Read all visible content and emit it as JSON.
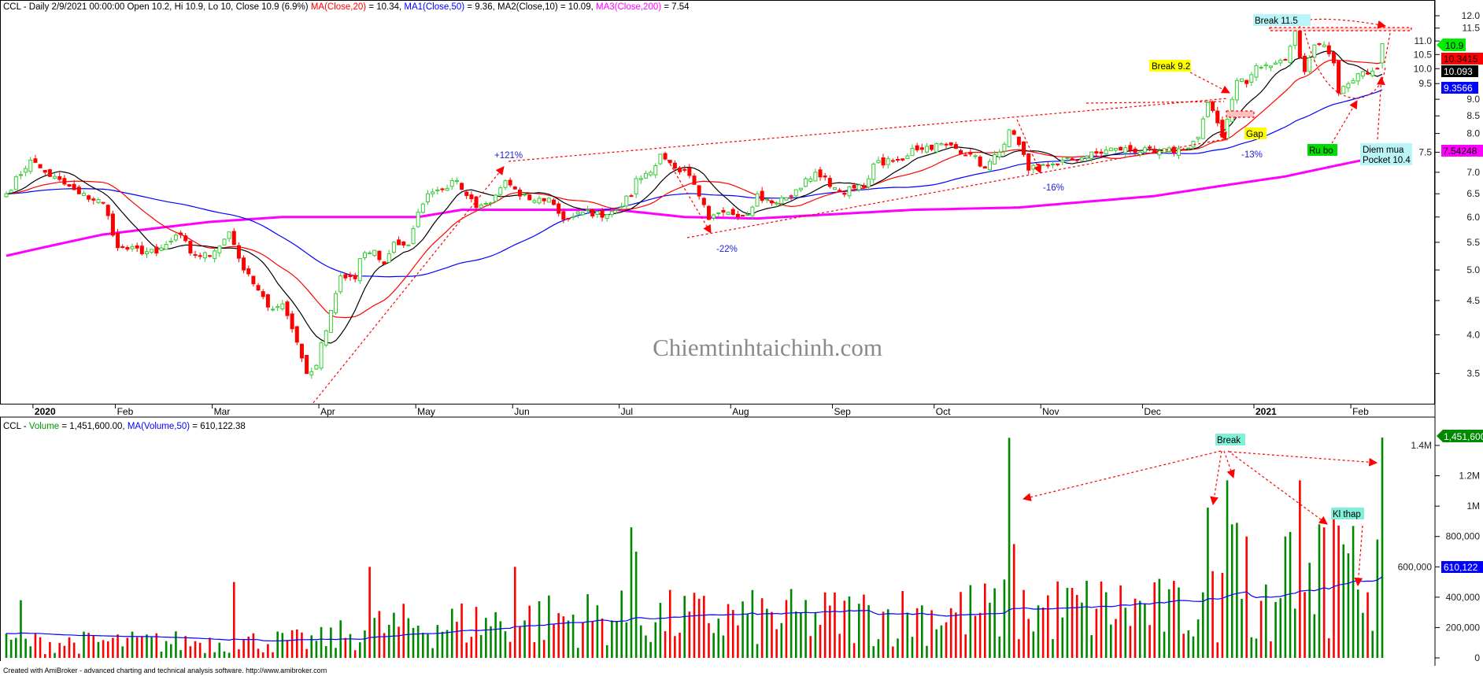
{
  "header": {
    "prefix": "CCL - Daily 2/9/2021 00:00:00 Open 10.2, Hi 10.9, Lo 10, Close 10.9 (6.9%) ",
    "ma20_name": "MA(Close,20)",
    "ma20_val": " = 10.34, ",
    "ma50_name": "MA1(Close,50)",
    "ma50_val": " = 9.36, ",
    "ma10_name": "MA2(Close,10)",
    "ma10_val": " = 10.09, ",
    "ma200_name": "MA3(Close,200)",
    "ma200_val": " = 7.54"
  },
  "volume_header": {
    "prefix": "CCL - ",
    "vol_name": "Volume",
    "vol_val": " = 1,451,600.00, ",
    "ma_name": "MA(Volume,50)",
    "ma_val": " = 610,122.38"
  },
  "watermark": "Chiemtinhtaichinh.com",
  "footer": "Created with AmiBroker - advanced charting and technical analysis software. http://www.amibroker.com",
  "colors": {
    "up": "#33cc33",
    "down": "#ff0000",
    "ma20": "#ff0000",
    "ma50": "#0000ff",
    "ma10": "#000000",
    "ma200": "#ff00ff",
    "vol_up": "#008800",
    "vol_down": "#ff0000",
    "label_cyan": "#b8f4f8",
    "label_yellow": "#ffff00",
    "label_green": "#00dd00",
    "label_aqua": "#80f0d8"
  },
  "annotations": {
    "p121": "+121%",
    "m22": "-22%",
    "m16": "-16%",
    "m13": "-13%",
    "break92": "Break 9.2",
    "gap": "Gap",
    "break115": "Break  11.5",
    "rubo": "Ru bo",
    "diem1": "Diem mua",
    "diem2": "Pocket 10.4",
    "vbreak": "Break",
    "klthap": "Kl thap"
  },
  "badges": {
    "close": "10.9",
    "ma20": "10.3415",
    "ma10": "10.093",
    "ma50": "9.3566",
    "ma200": "7.54248",
    "volume": "1,451,600",
    "vol_ma": "610,122"
  },
  "chart_data": [
    {
      "type": "candlestick",
      "symbol": "CCL",
      "scale": "log",
      "ylim": [
        3.2,
        12.6
      ],
      "yticks": [
        "12.0",
        "11.5",
        "11.0",
        "10.5",
        "10.0",
        "9.5",
        "9.0",
        "8.5",
        "8.0",
        "7.5",
        "7.0",
        "6.5",
        "6.0",
        "5.5",
        "5.0",
        "4.5",
        "4.0",
        "3.5"
      ],
      "xticks": [
        "2020",
        "Feb",
        "Mar",
        "Apr",
        "May",
        "Jun",
        "Jul",
        "Aug",
        "Sep",
        "Oct",
        "Nov",
        "Dec",
        "2021",
        "Feb"
      ],
      "last_bar": {
        "date": "2021-02-09",
        "open": 10.2,
        "high": 10.9,
        "low": 10,
        "close": 10.9,
        "change_pct": 6.9
      },
      "close_keypoints": [
        [
          "2019-12-24",
          6.5
        ],
        [
          "2019-12-31",
          7.3
        ],
        [
          "2020-01-06",
          7.0
        ],
        [
          "2020-01-15",
          6.5
        ],
        [
          "2020-01-22",
          6.3
        ],
        [
          "2020-02-03",
          5.4
        ],
        [
          "2020-02-13",
          5.3
        ],
        [
          "2020-02-20",
          5.65
        ],
        [
          "2020-02-24",
          5.3
        ],
        [
          "2020-02-28",
          5.25
        ],
        [
          "2020-03-05",
          5.7
        ],
        [
          "2020-03-10",
          5.0
        ],
        [
          "2020-03-17",
          4.4
        ],
        [
          "2020-03-20",
          4.45
        ],
        [
          "2020-03-25",
          3.9
        ],
        [
          "2020-03-27",
          3.5
        ],
        [
          "2020-03-31",
          3.6
        ],
        [
          "2020-04-06",
          4.35
        ],
        [
          "2020-04-08",
          4.9
        ],
        [
          "2020-04-13",
          4.85
        ],
        [
          "2020-04-14",
          5.2
        ],
        [
          "2020-04-17",
          5.35
        ],
        [
          "2020-04-21",
          5.1
        ],
        [
          "2020-04-23",
          5.5
        ],
        [
          "2020-04-28",
          5.45
        ],
        [
          "2020-05-04",
          6.1
        ],
        [
          "2020-05-06",
          6.5
        ],
        [
          "2020-05-11",
          6.6
        ],
        [
          "2020-05-14",
          6.8
        ],
        [
          "2020-05-15",
          6.6
        ],
        [
          "2020-05-20",
          6.2
        ],
        [
          "2020-05-25",
          6.3
        ],
        [
          "2020-05-28",
          6.8
        ],
        [
          "2020-05-29",
          6.7
        ],
        [
          "2020-06-02",
          6.45
        ],
        [
          "2020-06-05",
          6.35
        ],
        [
          "2020-06-10",
          6.4
        ],
        [
          "2020-06-15",
          5.95
        ],
        [
          "2020-06-19",
          6.1
        ],
        [
          "2020-06-26",
          6.05
        ],
        [
          "2020-07-03",
          6.45
        ],
        [
          "2020-07-06",
          6.85
        ],
        [
          "2020-07-09",
          7.0
        ],
        [
          "2020-07-13",
          7.45
        ],
        [
          "2020-07-16",
          7.1
        ],
        [
          "2020-07-20",
          7.05
        ],
        [
          "2020-07-23",
          6.45
        ],
        [
          "2020-07-27",
          5.95
        ],
        [
          "2020-07-31",
          6.1
        ],
        [
          "2020-08-06",
          6.05
        ],
        [
          "2020-08-10",
          6.5
        ],
        [
          "2020-08-13",
          6.3
        ],
        [
          "2020-08-19",
          6.45
        ],
        [
          "2020-08-26",
          7.0
        ],
        [
          "2020-09-03",
          6.55
        ],
        [
          "2020-09-10",
          6.65
        ],
        [
          "2020-09-14",
          7.2
        ],
        [
          "2020-09-22",
          7.3
        ],
        [
          "2020-09-24",
          7.6
        ],
        [
          "2020-10-05",
          7.7
        ],
        [
          "2020-10-12",
          7.45
        ],
        [
          "2020-10-15",
          7.1
        ],
        [
          "2020-10-20",
          7.5
        ],
        [
          "2020-10-22",
          8.1
        ],
        [
          "2020-10-26",
          7.7
        ],
        [
          "2020-10-28",
          7.05
        ],
        [
          "2020-11-04",
          7.2
        ],
        [
          "2020-11-13",
          7.4
        ],
        [
          "2020-11-23",
          7.6
        ],
        [
          "2020-12-03",
          7.5
        ],
        [
          "2020-12-11",
          7.57
        ],
        [
          "2020-12-16",
          7.9
        ],
        [
          "2020-12-18",
          8.9
        ],
        [
          "2020-12-22",
          8.3
        ],
        [
          "2020-12-23",
          7.9
        ],
        [
          "2020-12-24",
          8.4
        ],
        [
          "2020-12-25",
          9.0
        ],
        [
          "2020-12-28",
          9.6
        ],
        [
          "2020-12-30",
          9.5
        ],
        [
          "2021-01-04",
          10.1
        ],
        [
          "2021-01-08",
          10.2
        ],
        [
          "2021-01-12",
          10.3
        ],
        [
          "2021-01-13",
          10.8
        ],
        [
          "2021-01-14",
          11.4
        ],
        [
          "2021-01-15",
          10.4
        ],
        [
          "2021-01-18",
          9.9
        ],
        [
          "2021-01-20",
          10.85
        ],
        [
          "2021-01-22",
          10.85
        ],
        [
          "2021-01-26",
          10.2
        ],
        [
          "2021-01-27",
          9.2
        ],
        [
          "2021-01-29",
          9.5
        ],
        [
          "2021-02-03",
          9.9
        ],
        [
          "2021-02-08",
          10.0
        ],
        [
          "2021-02-09",
          10.9
        ]
      ],
      "ma200_keypoints": [
        [
          "2019-12-24",
          5.25
        ],
        [
          "2020-01-22",
          5.65
        ],
        [
          "2020-02-28",
          5.9
        ],
        [
          "2020-03-20",
          6.0
        ],
        [
          "2020-05-04",
          6.0
        ],
        [
          "2020-05-15",
          6.15
        ],
        [
          "2020-06-30",
          6.15
        ],
        [
          "2020-07-20",
          6.0
        ],
        [
          "2020-08-10",
          5.97
        ],
        [
          "2020-09-24",
          6.15
        ],
        [
          "2020-10-26",
          6.2
        ],
        [
          "2020-12-03",
          6.45
        ],
        [
          "2021-01-12",
          6.9
        ],
        [
          "2021-02-03",
          7.3
        ],
        [
          "2021-02-09",
          7.54
        ]
      ],
      "indicators": {
        "ma20": 10.34,
        "ma50": 9.36,
        "ma10": 10.09,
        "ma200": 7.54
      }
    },
    {
      "type": "bar",
      "series": "Volume",
      "ylim": [
        0,
        1500000
      ],
      "yticks": [
        "1.4M",
        "1.2M",
        "1M",
        "800,000",
        "600,000",
        "400,000",
        "200,000",
        "0"
      ],
      "ytick_values": [
        1400000,
        1200000,
        1000000,
        800000,
        600000,
        400000,
        200000,
        0
      ],
      "typical_volume": [
        [
          "2019-12-24",
          100000
        ],
        [
          "2020-03-31",
          110000
        ],
        [
          "2020-04-20",
          200000
        ],
        [
          "2020-06-15",
          260000
        ],
        [
          "2020-08-15",
          260000
        ],
        [
          "2020-10-15",
          300000
        ],
        [
          "2020-11-20",
          330000
        ],
        [
          "2020-12-10",
          300000
        ],
        [
          "2021-01-05",
          420000
        ],
        [
          "2021-02-08",
          560000
        ]
      ],
      "volume_spikes": [
        [
          "2019-12-27",
          380000
        ],
        [
          "2020-03-06",
          500000
        ],
        [
          "2020-04-16",
          600000
        ],
        [
          "2020-06-01",
          600000
        ],
        [
          "2020-07-03",
          860000
        ],
        [
          "2020-07-06",
          700000
        ],
        [
          "2020-10-22",
          1450000
        ],
        [
          "2020-10-23",
          750000
        ],
        [
          "2020-12-18",
          990000
        ],
        [
          "2020-12-24",
          1170000
        ],
        [
          "2020-12-25",
          880000
        ],
        [
          "2020-12-28",
          890000
        ],
        [
          "2020-12-30",
          800000
        ],
        [
          "2021-01-12",
          800000
        ],
        [
          "2021-01-13",
          830000
        ],
        [
          "2021-01-15",
          1170000
        ],
        [
          "2021-01-21",
          880000
        ],
        [
          "2021-01-22",
          860000
        ],
        [
          "2021-01-26",
          920000
        ],
        [
          "2021-02-08",
          780000
        ],
        [
          "2021-02-09",
          1451600
        ]
      ],
      "last_volume": 1451600,
      "ma50": 610122.38
    }
  ]
}
